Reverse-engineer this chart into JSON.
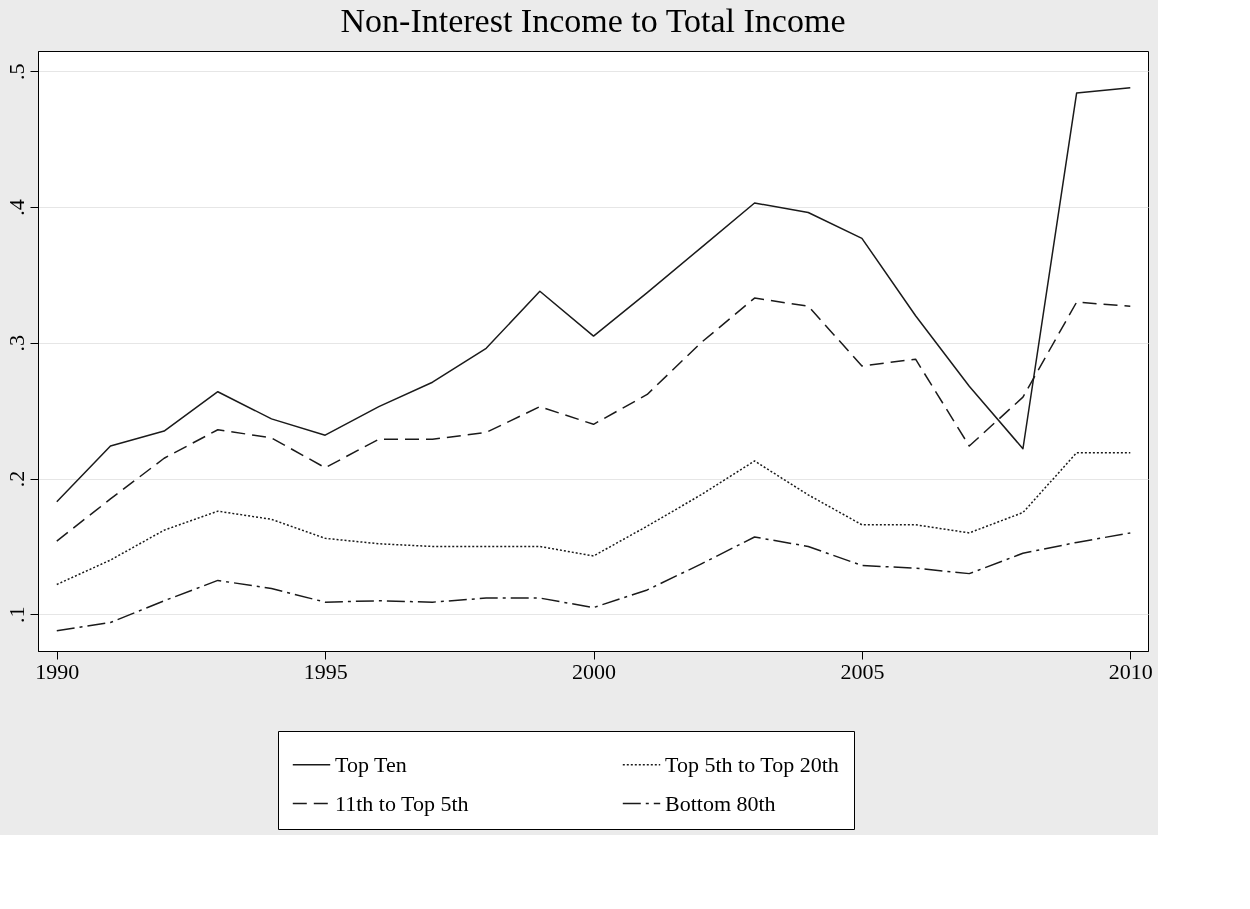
{
  "chart_data": {
    "type": "line",
    "title": "Non-Interest Income to Total Income",
    "x": [
      1990,
      1991,
      1992,
      1993,
      1994,
      1995,
      1996,
      1997,
      1998,
      1999,
      2000,
      2001,
      2002,
      2003,
      2004,
      2005,
      2006,
      2007,
      2008,
      2009,
      2010
    ],
    "series": [
      {
        "name": "Top Ten",
        "color": "#1a1a1a",
        "line_style": "solid",
        "values": [
          0.183,
          0.224,
          0.235,
          0.264,
          0.244,
          0.232,
          0.253,
          0.271,
          0.296,
          0.338,
          0.305,
          0.337,
          0.37,
          0.403,
          0.396,
          0.377,
          0.32,
          0.268,
          0.222,
          0.484,
          0.488
        ]
      },
      {
        "name": "11th to Top 5th",
        "color": "#1a1a1a",
        "line_style": "dashed",
        "values": [
          0.154,
          0.185,
          0.215,
          0.236,
          0.23,
          0.208,
          0.229,
          0.229,
          0.234,
          0.253,
          0.24,
          0.262,
          0.3,
          0.333,
          0.327,
          0.283,
          0.288,
          0.224,
          0.26,
          0.33,
          0.327
        ]
      },
      {
        "name": "Top 5th to Top 20th",
        "color": "#1a1a1a",
        "line_style": "dotted",
        "values": [
          0.122,
          0.14,
          0.162,
          0.176,
          0.17,
          0.156,
          0.152,
          0.15,
          0.15,
          0.15,
          0.143,
          0.165,
          0.188,
          0.213,
          0.188,
          0.166,
          0.166,
          0.16,
          0.175,
          0.219,
          0.219
        ]
      },
      {
        "name": "Bottom 80th",
        "color": "#1a1a1a",
        "line_style": "dashdot",
        "values": [
          0.088,
          0.094,
          0.11,
          0.125,
          0.119,
          0.109,
          0.11,
          0.109,
          0.112,
          0.112,
          0.105,
          0.118,
          0.137,
          0.157,
          0.15,
          0.136,
          0.134,
          0.13,
          0.145,
          0.153,
          0.16
        ]
      }
    ],
    "xlim": [
      1989.65,
      2010.33
    ],
    "xticks": [
      1990,
      1995,
      2000,
      2005,
      2010
    ],
    "ylim": [
      0.073,
      0.515
    ],
    "yticks": [
      {
        "value": 0.1,
        "label": ".1"
      },
      {
        "value": 0.2,
        "label": ".2"
      },
      {
        "value": 0.3,
        "label": ".3"
      },
      {
        "value": 0.4,
        "label": ".4"
      },
      {
        "value": 0.5,
        "label": ".5"
      }
    ],
    "grid": "y",
    "legend": "bottom",
    "marker": "none"
  }
}
